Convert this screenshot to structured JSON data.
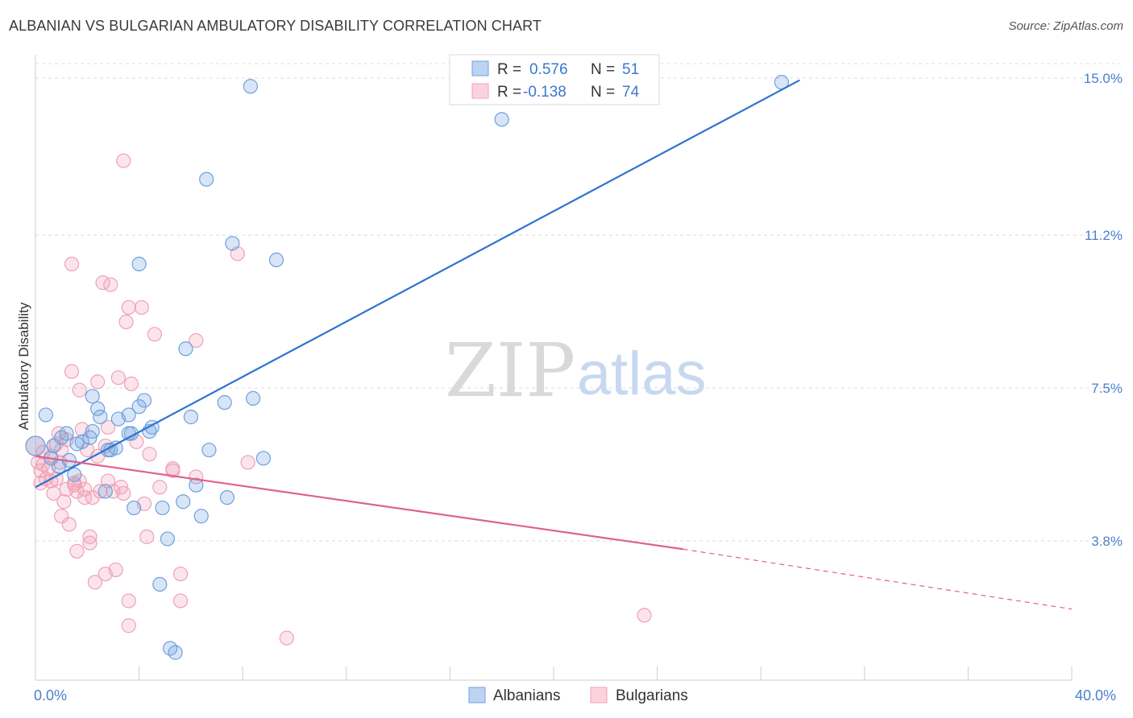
{
  "header": {
    "title": "ALBANIAN VS BULGARIAN AMBULATORY DISABILITY CORRELATION CHART",
    "source": "Source: ZipAtlas.com"
  },
  "watermark": {
    "zip": "ZIP",
    "atlas": "atlas"
  },
  "legend": {
    "rows": [
      {
        "r_label": "R =",
        "r_value": "0.576",
        "n_label": "N =",
        "n_value": "51",
        "color": "#6fa0e0"
      },
      {
        "r_label": "R =",
        "r_value": "-0.138",
        "n_label": "N =",
        "n_value": "74",
        "color": "#f0a0b8"
      }
    ]
  },
  "bottom_legend": {
    "albanians": "Albanians",
    "bulgarians": "Bulgarians"
  },
  "chart_data": {
    "type": "scatter",
    "title": "ALBANIAN VS BULGARIAN AMBULATORY DISABILITY CORRELATION CHART",
    "xlabel": "",
    "ylabel": "Ambulatory Disability",
    "xlim": [
      0,
      40
    ],
    "ylim": [
      0,
      15.7
    ],
    "x_tick_labels": {
      "left": "0.0%",
      "right": "40.0%"
    },
    "y_ticks": [
      {
        "value": 3.8,
        "label": "3.8%"
      },
      {
        "value": 7.5,
        "label": "7.5%"
      },
      {
        "value": 11.2,
        "label": "11.2%"
      },
      {
        "value": 15.0,
        "label": "15.0%"
      }
    ],
    "grid": "horizontal dashed",
    "legend_position": "top-center",
    "colors": {
      "albanians": "#6fa0e0",
      "albanians_line": "#2f74d0",
      "bulgarians": "#f0a0b8",
      "bulgarians_line": "#e0608e"
    },
    "series": [
      {
        "name": "Albanians",
        "trend": {
          "x": [
            0.0,
            29.5
          ],
          "y": [
            5.1,
            14.95
          ],
          "dashed_to": null
        },
        "points": [
          [
            0.0,
            6.1
          ],
          [
            0.4,
            6.85
          ],
          [
            0.6,
            5.8
          ],
          [
            0.7,
            6.1
          ],
          [
            0.9,
            5.6
          ],
          [
            1.0,
            6.3
          ],
          [
            1.2,
            6.4
          ],
          [
            1.3,
            5.75
          ],
          [
            1.5,
            5.4
          ],
          [
            1.6,
            6.15
          ],
          [
            2.1,
            6.3
          ],
          [
            2.2,
            6.45
          ],
          [
            2.2,
            7.3
          ],
          [
            2.4,
            7.0
          ],
          [
            2.5,
            6.8
          ],
          [
            2.7,
            5.0
          ],
          [
            2.8,
            6.0
          ],
          [
            3.1,
            6.05
          ],
          [
            3.2,
            6.75
          ],
          [
            3.6,
            6.4
          ],
          [
            3.6,
            6.85
          ],
          [
            3.8,
            4.6
          ],
          [
            4.0,
            7.05
          ],
          [
            4.0,
            10.5
          ],
          [
            4.2,
            7.2
          ],
          [
            4.4,
            6.45
          ],
          [
            4.5,
            6.55
          ],
          [
            4.8,
            2.75
          ],
          [
            4.9,
            4.6
          ],
          [
            5.1,
            3.85
          ],
          [
            5.2,
            1.2
          ],
          [
            5.4,
            1.1
          ],
          [
            5.7,
            4.75
          ],
          [
            5.8,
            8.45
          ],
          [
            6.0,
            6.8
          ],
          [
            6.2,
            5.15
          ],
          [
            6.4,
            4.4
          ],
          [
            6.6,
            12.55
          ],
          [
            6.7,
            6.0
          ],
          [
            7.3,
            7.15
          ],
          [
            7.4,
            4.85
          ],
          [
            7.6,
            11.0
          ],
          [
            8.3,
            14.8
          ],
          [
            8.4,
            7.25
          ],
          [
            8.8,
            5.8
          ],
          [
            9.3,
            10.6
          ],
          [
            18.0,
            14.0
          ],
          [
            28.8,
            14.9
          ],
          [
            3.7,
            6.4
          ],
          [
            2.9,
            6.0
          ],
          [
            1.8,
            6.2
          ]
        ]
      },
      {
        "name": "Bulgarians",
        "trend": {
          "x": [
            0.0,
            25.0
          ],
          "y": [
            5.85,
            3.6
          ],
          "dashed_to": {
            "x": 40.0,
            "y": 2.15
          }
        },
        "points": [
          [
            0.0,
            6.1
          ],
          [
            0.1,
            5.7
          ],
          [
            0.2,
            5.2
          ],
          [
            0.2,
            5.5
          ],
          [
            0.3,
            5.95
          ],
          [
            0.4,
            5.3
          ],
          [
            0.5,
            5.55
          ],
          [
            0.6,
            5.25
          ],
          [
            0.6,
            5.85
          ],
          [
            0.7,
            4.95
          ],
          [
            0.8,
            6.15
          ],
          [
            0.8,
            5.3
          ],
          [
            0.9,
            6.4
          ],
          [
            1.0,
            6.0
          ],
          [
            1.0,
            4.4
          ],
          [
            1.1,
            4.75
          ],
          [
            1.2,
            6.25
          ],
          [
            1.2,
            5.05
          ],
          [
            1.3,
            4.2
          ],
          [
            1.4,
            7.9
          ],
          [
            1.4,
            10.5
          ],
          [
            1.5,
            5.15
          ],
          [
            1.6,
            5.0
          ],
          [
            1.6,
            3.55
          ],
          [
            1.7,
            7.45
          ],
          [
            1.8,
            6.5
          ],
          [
            1.9,
            4.85
          ],
          [
            1.9,
            5.05
          ],
          [
            2.0,
            6.0
          ],
          [
            2.1,
            3.75
          ],
          [
            2.1,
            3.9
          ],
          [
            2.2,
            4.85
          ],
          [
            2.3,
            2.8
          ],
          [
            2.4,
            7.65
          ],
          [
            2.4,
            5.85
          ],
          [
            2.5,
            5.0
          ],
          [
            2.6,
            10.05
          ],
          [
            2.7,
            6.1
          ],
          [
            2.7,
            3.0
          ],
          [
            2.8,
            6.55
          ],
          [
            2.9,
            10.0
          ],
          [
            3.0,
            5.0
          ],
          [
            3.1,
            3.1
          ],
          [
            3.2,
            7.75
          ],
          [
            3.3,
            5.1
          ],
          [
            3.4,
            4.95
          ],
          [
            3.4,
            13.0
          ],
          [
            3.5,
            9.1
          ],
          [
            3.6,
            9.45
          ],
          [
            3.6,
            2.35
          ],
          [
            3.6,
            1.75
          ],
          [
            3.7,
            7.6
          ],
          [
            3.9,
            6.2
          ],
          [
            4.1,
            9.45
          ],
          [
            4.2,
            4.7
          ],
          [
            4.3,
            3.9
          ],
          [
            4.4,
            5.9
          ],
          [
            4.6,
            8.8
          ],
          [
            4.8,
            5.1
          ],
          [
            5.3,
            5.5
          ],
          [
            5.3,
            5.55
          ],
          [
            5.6,
            3.0
          ],
          [
            5.6,
            2.35
          ],
          [
            6.2,
            8.65
          ],
          [
            6.2,
            5.35
          ],
          [
            7.8,
            10.75
          ],
          [
            8.2,
            5.7
          ],
          [
            9.7,
            1.45
          ],
          [
            23.5,
            2.0
          ],
          [
            1.5,
            5.2
          ],
          [
            0.3,
            5.65
          ],
          [
            2.8,
            5.25
          ],
          [
            0.95,
            5.7
          ],
          [
            1.7,
            5.25
          ]
        ]
      }
    ]
  }
}
